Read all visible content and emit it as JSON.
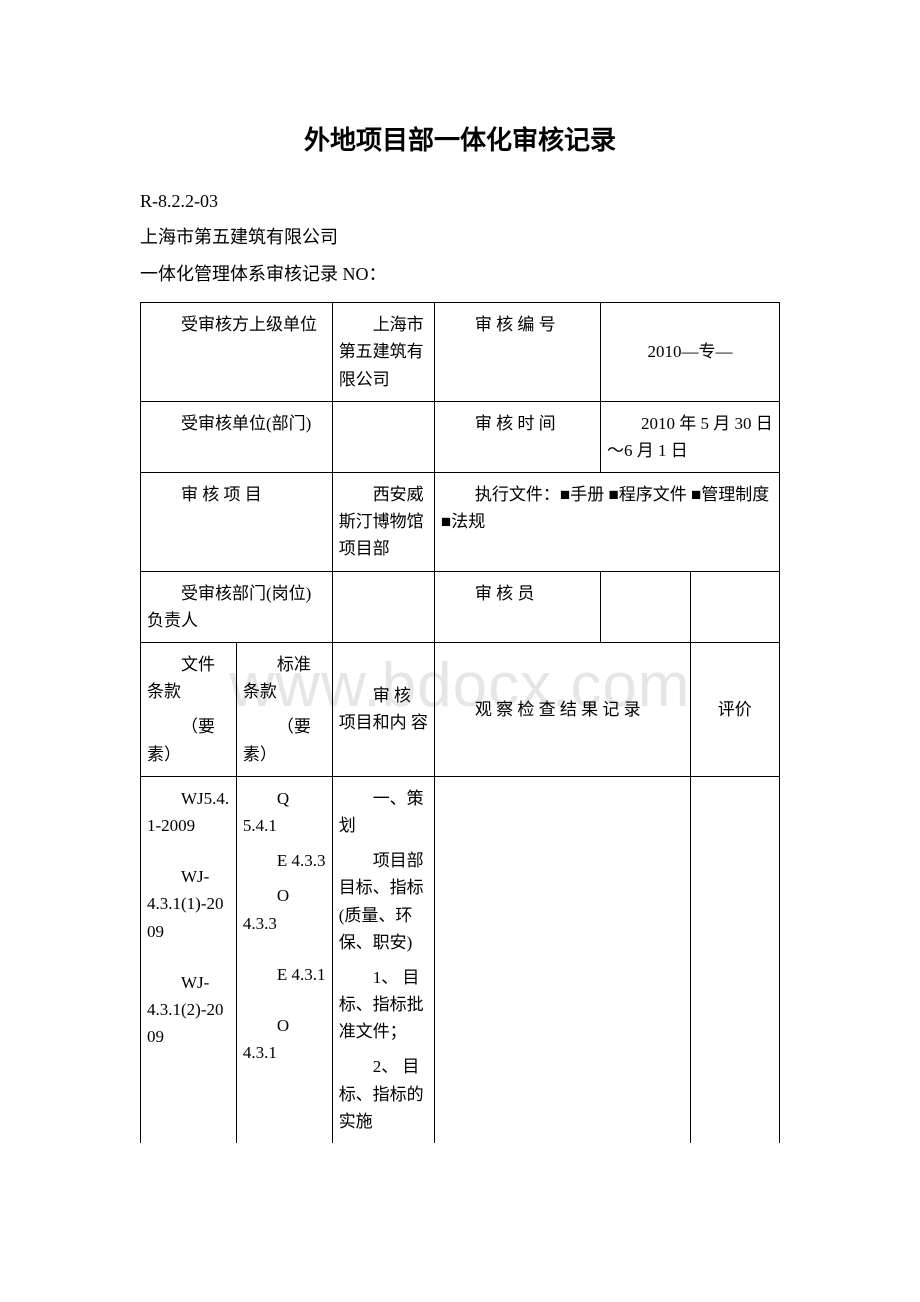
{
  "title": "外地项目部一体化审核记录",
  "doc_code": "R-8.2.2-03",
  "company": "上海市第五建筑有限公司",
  "record_title": "一体化管理体系审核记录  NO：",
  "watermark": "www.bdocx.com",
  "meta": {
    "superior_unit_label": "受审核方上级单位",
    "superior_unit_value": "上海市第五建筑有限公司",
    "audit_no_label": "审 核 编  号",
    "audit_no_value": "2010—专—",
    "audited_unit_label": "受审核单位(部门)",
    "audited_unit_value": "",
    "audit_time_label": "审 核 时  间",
    "audit_time_value": "2010 年 5 月 30 日～6 月 1 日",
    "audit_project_label": "审 核 项 目",
    "audit_project_value": "西安威斯汀博物馆项目部",
    "exec_doc_label": "执行文件：■手册 ■程序文件 ■管理制度 ■法规",
    "dept_head_label": "受审核部门(岗位)负责人",
    "dept_head_value": "",
    "auditor_label": "审 核 员",
    "auditor_value": ""
  },
  "headers": {
    "col1_l1": "文件条款",
    "col1_l2": "（要素）",
    "col2_l1": "标准条款",
    "col2_l2": "（要素）",
    "col3": "审 核 项目和内  容",
    "col4": "观 察 检 查 结 果 记  录",
    "col5": "评价"
  },
  "row": {
    "c1p1": "WJ5.4.1-2009",
    "c1p2": "WJ-4.3.1(1)-2009",
    "c1p3": "WJ-4.3.1(2)-2009",
    "c2p1": "Q  5.4.1",
    "c2p2": "E  4.3.3",
    "c2p3": "O  4.3.3",
    "c2p4": "E  4.3.1",
    "c2p5": "O  4.3.1",
    "c3p1": "一、策划",
    "c3p2": "项目部目标、指标(质量、环保、职安)",
    "c3p3": "1、 目标、指标批准文件；",
    "c3p4": "2、 目标、指标的实施"
  },
  "colwidths": {
    "c1": "15%",
    "c2": "15%",
    "c3": "16%",
    "c4": "26%",
    "c5": "14%",
    "c6": "14%"
  }
}
